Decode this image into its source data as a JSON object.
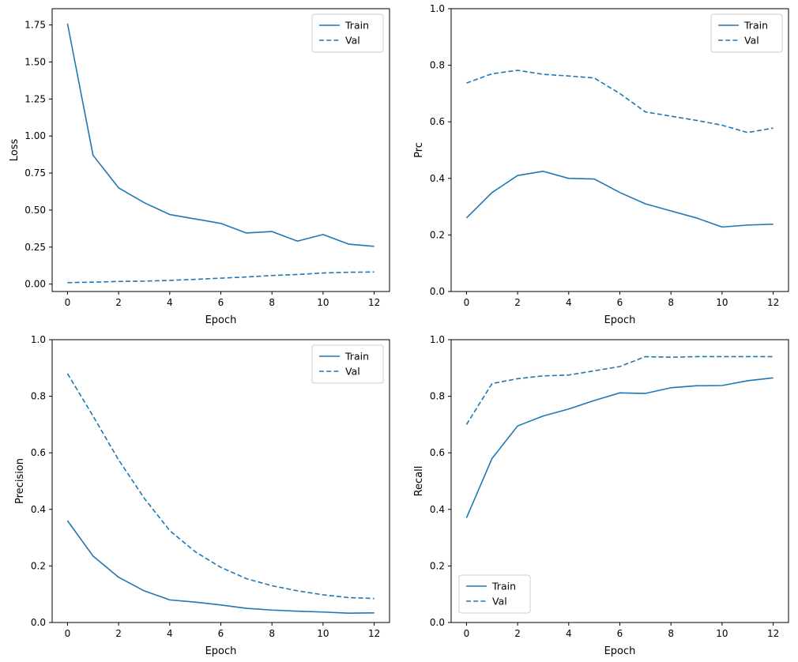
{
  "figure": {
    "background": "#ffffff",
    "accent_color": "#1f77b4",
    "spine_color": "#000000",
    "legend_border_color": "#cccccc"
  },
  "chart_data": [
    {
      "id": "loss",
      "type": "line",
      "title": "",
      "xlabel": "Epoch",
      "ylabel": "Loss",
      "x": [
        0,
        1,
        2,
        3,
        4,
        5,
        6,
        7,
        8,
        9,
        10,
        11,
        12
      ],
      "xlim": [
        -0.6,
        12.6
      ],
      "ylim": [
        -0.05,
        1.86
      ],
      "xticks": [
        0,
        2,
        4,
        6,
        8,
        10,
        12
      ],
      "xtick_labels": [
        "0",
        "2",
        "4",
        "6",
        "8",
        "10",
        "12"
      ],
      "yticks": [
        0,
        0.25,
        0.5,
        0.75,
        1.0,
        1.25,
        1.5,
        1.75
      ],
      "ytick_labels": [
        "0.00",
        "0.25",
        "0.50",
        "0.75",
        "1.00",
        "1.25",
        "1.50",
        "1.75"
      ],
      "legend_loc": "upper-right",
      "series": [
        {
          "name": "Train",
          "style": "solid",
          "values": [
            1.76,
            0.87,
            0.65,
            0.55,
            0.47,
            0.44,
            0.41,
            0.345,
            0.355,
            0.29,
            0.335,
            0.27,
            0.255
          ]
        },
        {
          "name": "Val",
          "style": "dashed",
          "values": [
            0.01,
            0.013,
            0.018,
            0.02,
            0.025,
            0.032,
            0.04,
            0.048,
            0.058,
            0.065,
            0.075,
            0.08,
            0.082
          ]
        }
      ]
    },
    {
      "id": "prc",
      "type": "line",
      "title": "",
      "xlabel": "Epoch",
      "ylabel": "Prc",
      "x": [
        0,
        1,
        2,
        3,
        4,
        5,
        6,
        7,
        8,
        9,
        10,
        11,
        12
      ],
      "xlim": [
        -0.6,
        12.6
      ],
      "ylim": [
        0,
        1
      ],
      "xticks": [
        0,
        2,
        4,
        6,
        8,
        10,
        12
      ],
      "xtick_labels": [
        "0",
        "2",
        "4",
        "6",
        "8",
        "10",
        "12"
      ],
      "yticks": [
        0,
        0.2,
        0.4,
        0.6,
        0.8,
        1.0
      ],
      "ytick_labels": [
        "0.0",
        "0.2",
        "0.4",
        "0.6",
        "0.8",
        "1.0"
      ],
      "legend_loc": "upper-right",
      "series": [
        {
          "name": "Train",
          "style": "solid",
          "values": [
            0.26,
            0.35,
            0.41,
            0.425,
            0.4,
            0.398,
            0.35,
            0.31,
            0.285,
            0.26,
            0.228,
            0.235,
            0.238
          ]
        },
        {
          "name": "Val",
          "style": "dashed",
          "values": [
            0.737,
            0.77,
            0.782,
            0.768,
            0.762,
            0.755,
            0.7,
            0.635,
            0.62,
            0.605,
            0.588,
            0.562,
            0.578
          ]
        }
      ]
    },
    {
      "id": "precision",
      "type": "line",
      "title": "",
      "xlabel": "Epoch",
      "ylabel": "Precision",
      "x": [
        0,
        1,
        2,
        3,
        4,
        5,
        6,
        7,
        8,
        9,
        10,
        11,
        12
      ],
      "xlim": [
        -0.6,
        12.6
      ],
      "ylim": [
        0,
        1
      ],
      "xticks": [
        0,
        2,
        4,
        6,
        8,
        10,
        12
      ],
      "xtick_labels": [
        "0",
        "2",
        "4",
        "6",
        "8",
        "10",
        "12"
      ],
      "yticks": [
        0,
        0.2,
        0.4,
        0.6,
        0.8,
        1.0
      ],
      "ytick_labels": [
        "0.0",
        "0.2",
        "0.4",
        "0.6",
        "0.8",
        "1.0"
      ],
      "legend_loc": "upper-right",
      "series": [
        {
          "name": "Train",
          "style": "solid",
          "values": [
            0.36,
            0.235,
            0.16,
            0.112,
            0.08,
            0.072,
            0.062,
            0.05,
            0.044,
            0.04,
            0.037,
            0.033,
            0.034
          ]
        },
        {
          "name": "Val",
          "style": "dashed",
          "values": [
            0.88,
            0.73,
            0.575,
            0.44,
            0.325,
            0.25,
            0.195,
            0.155,
            0.13,
            0.112,
            0.098,
            0.088,
            0.085
          ]
        }
      ]
    },
    {
      "id": "recall",
      "type": "line",
      "title": "",
      "xlabel": "Epoch",
      "ylabel": "Recall",
      "x": [
        0,
        1,
        2,
        3,
        4,
        5,
        6,
        7,
        8,
        9,
        10,
        11,
        12
      ],
      "xlim": [
        -0.6,
        12.6
      ],
      "ylim": [
        0,
        1
      ],
      "xticks": [
        0,
        2,
        4,
        6,
        8,
        10,
        12
      ],
      "xtick_labels": [
        "0",
        "2",
        "4",
        "6",
        "8",
        "10",
        "12"
      ],
      "yticks": [
        0,
        0.2,
        0.4,
        0.6,
        0.8,
        1.0
      ],
      "ytick_labels": [
        "0.0",
        "0.2",
        "0.4",
        "0.6",
        "0.8",
        "1.0"
      ],
      "legend_loc": "lower-left",
      "series": [
        {
          "name": "Train",
          "style": "solid",
          "values": [
            0.37,
            0.58,
            0.695,
            0.73,
            0.755,
            0.785,
            0.812,
            0.81,
            0.83,
            0.837,
            0.838,
            0.855,
            0.865
          ]
        },
        {
          "name": "Val",
          "style": "dashed",
          "values": [
            0.7,
            0.845,
            0.862,
            0.872,
            0.875,
            0.89,
            0.905,
            0.94,
            0.938,
            0.94,
            0.94,
            0.94,
            0.94
          ]
        }
      ]
    }
  ]
}
